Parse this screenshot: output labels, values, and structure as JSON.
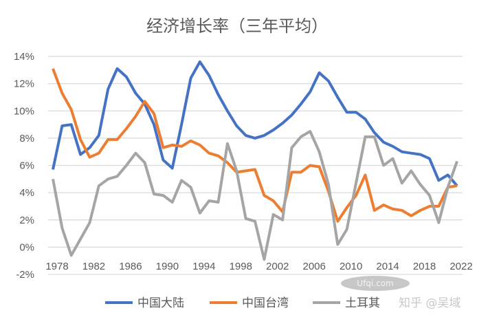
{
  "chart_data": {
    "type": "line",
    "title": "经济增长率（三年平均）",
    "xlabel": "",
    "ylabel": "",
    "x": [
      1978,
      1979,
      1980,
      1981,
      1982,
      1983,
      1984,
      1985,
      1986,
      1987,
      1988,
      1989,
      1990,
      1991,
      1992,
      1993,
      1994,
      1995,
      1996,
      1997,
      1998,
      1999,
      2000,
      2001,
      2002,
      2003,
      2004,
      2005,
      2006,
      2007,
      2008,
      2009,
      2010,
      2011,
      2012,
      2013,
      2014,
      2015,
      2016,
      2017,
      2018,
      2019,
      2020,
      2021,
      2022
    ],
    "x_ticks": [
      "1978",
      "1982",
      "1986",
      "1990",
      "1994",
      "1998",
      "2002",
      "2006",
      "2010",
      "2014",
      "2018",
      "2022"
    ],
    "y_ticks": [
      "-2%",
      "0%",
      "2%",
      "4%",
      "6%",
      "8%",
      "10%",
      "12%",
      "14%"
    ],
    "ylim": [
      -2,
      14
    ],
    "grid": true,
    "legend_position": "bottom",
    "series": [
      {
        "name": "中国大陆",
        "color": "#4472C4",
        "values": [
          5.7,
          8.9,
          9.0,
          6.8,
          7.3,
          8.2,
          11.6,
          13.1,
          12.5,
          11.3,
          10.5,
          9.0,
          6.4,
          5.8,
          9.0,
          12.4,
          13.6,
          12.6,
          11.2,
          10.0,
          8.9,
          8.2,
          8.0,
          8.2,
          8.6,
          9.1,
          9.7,
          10.5,
          11.4,
          12.8,
          12.2,
          11.0,
          9.9,
          9.9,
          9.4,
          8.4,
          7.7,
          7.4,
          7.0,
          6.9,
          6.8,
          6.5,
          4.9,
          5.3,
          4.5
        ]
      },
      {
        "name": "中国台湾",
        "color": "#ED7D31",
        "values": [
          13.1,
          11.3,
          10.1,
          7.9,
          6.6,
          6.9,
          7.9,
          7.9,
          8.7,
          9.6,
          10.7,
          9.8,
          7.3,
          7.5,
          7.4,
          7.8,
          7.5,
          6.9,
          6.7,
          6.2,
          5.5,
          5.6,
          5.7,
          3.8,
          3.4,
          2.6,
          5.5,
          5.5,
          6.0,
          5.9,
          4.1,
          1.9,
          2.9,
          3.8,
          5.3,
          2.7,
          3.1,
          2.8,
          2.7,
          2.3,
          2.7,
          3.0,
          3.0,
          4.4,
          4.5
        ]
      },
      {
        "name": "土耳其",
        "color": "#A5A5A5",
        "values": [
          5.0,
          1.4,
          -0.6,
          0.6,
          1.8,
          4.5,
          5.0,
          5.2,
          6.0,
          6.9,
          6.2,
          3.9,
          3.8,
          3.3,
          4.9,
          4.4,
          2.5,
          3.4,
          3.3,
          7.6,
          5.6,
          2.1,
          1.9,
          -0.9,
          2.4,
          2.0,
          7.3,
          8.1,
          8.5,
          7.0,
          4.6,
          0.2,
          1.3,
          4.7,
          8.1,
          8.1,
          6.0,
          6.5,
          4.7,
          5.6,
          4.6,
          3.8,
          1.8,
          4.4,
          6.3
        ]
      }
    ]
  },
  "watermarks": {
    "site": "Ufqi.com",
    "author": "知乎 @吴域"
  }
}
